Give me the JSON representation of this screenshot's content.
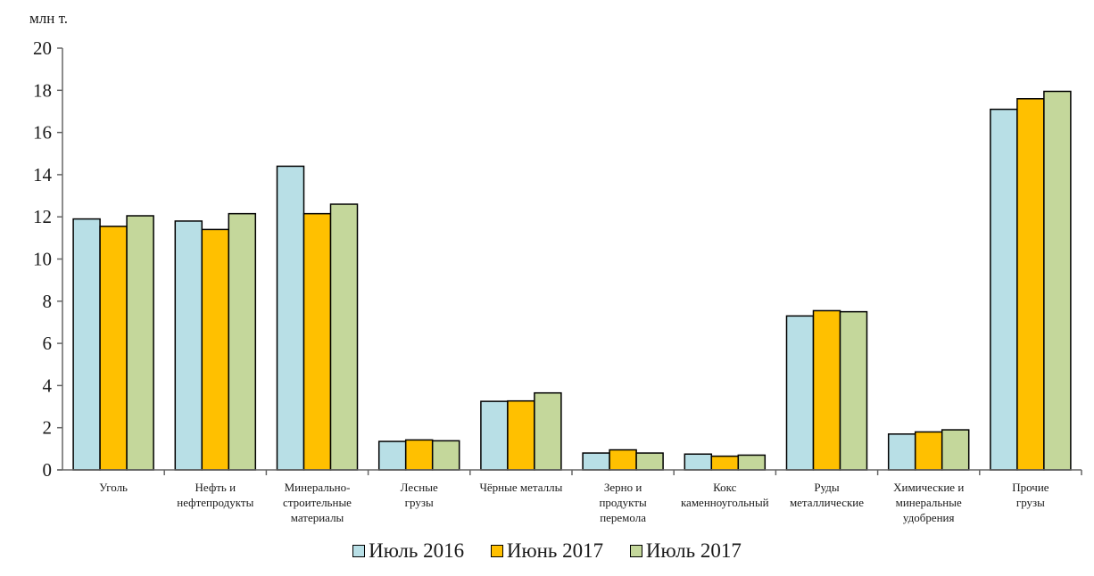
{
  "chart_data": {
    "type": "bar",
    "unit_label": "млн т.",
    "categories": [
      [
        "Уголь"
      ],
      [
        "Нефть и",
        "нефтепродукты"
      ],
      [
        "Минерально-",
        "строительные",
        "материалы"
      ],
      [
        "Лесные",
        "грузы"
      ],
      [
        "Чёрные металлы"
      ],
      [
        "Зерно и",
        "продукты",
        "перемола"
      ],
      [
        "Кокс",
        "каменноугольный"
      ],
      [
        "Руды",
        "металлические"
      ],
      [
        "Химические и",
        "минеральные",
        "удобрения"
      ],
      [
        "Прочие",
        "грузы"
      ]
    ],
    "series": [
      {
        "name": "Июль 2016",
        "color": "#b8dfe6",
        "values": [
          11.9,
          11.8,
          14.4,
          1.35,
          3.25,
          0.8,
          0.75,
          7.3,
          1.7,
          17.1
        ]
      },
      {
        "name": "Июнь 2017",
        "color": "#ffc000",
        "values": [
          11.55,
          11.4,
          12.15,
          1.42,
          3.27,
          0.95,
          0.65,
          7.55,
          1.8,
          17.6
        ]
      },
      {
        "name": "Июль 2017",
        "color": "#c4d79b",
        "values": [
          12.05,
          12.15,
          12.6,
          1.38,
          3.65,
          0.8,
          0.7,
          7.5,
          1.9,
          17.95
        ]
      }
    ],
    "ylim": [
      0,
      20
    ],
    "yticks": [
      0,
      2,
      4,
      6,
      8,
      10,
      12,
      14,
      16,
      18,
      20
    ],
    "grid": false,
    "legend_position": "bottom"
  }
}
